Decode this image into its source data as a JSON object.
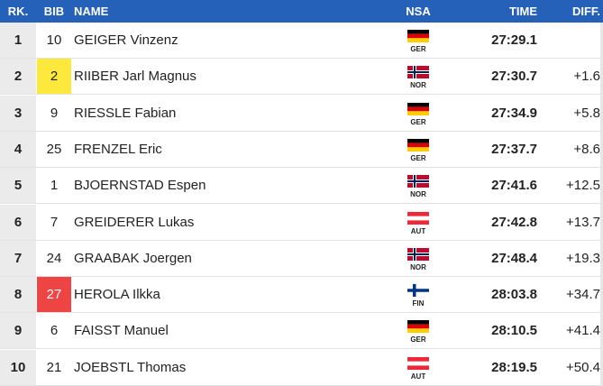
{
  "headers": {
    "rank": "RK.",
    "bib": "BIB",
    "name": "NAME",
    "nsa": "NSA",
    "time": "TIME",
    "diff": "DIFF."
  },
  "rows": [
    {
      "rank": "1",
      "bib": "10",
      "bib_color": "",
      "name": "GEIGER Vinzenz",
      "nsa": "GER",
      "flag": "germany-flag-icon",
      "time": "27:29.1",
      "diff": ""
    },
    {
      "rank": "2",
      "bib": "2",
      "bib_color": "yellow",
      "name": "RIIBER Jarl Magnus",
      "nsa": "NOR",
      "flag": "norway-flag-icon",
      "time": "27:30.7",
      "diff": "+1.6"
    },
    {
      "rank": "3",
      "bib": "9",
      "bib_color": "",
      "name": "RIESSLE Fabian",
      "nsa": "GER",
      "flag": "germany-flag-icon",
      "time": "27:34.9",
      "diff": "+5.8"
    },
    {
      "rank": "4",
      "bib": "25",
      "bib_color": "",
      "name": "FRENZEL Eric",
      "nsa": "GER",
      "flag": "germany-flag-icon",
      "time": "27:37.7",
      "diff": "+8.6"
    },
    {
      "rank": "5",
      "bib": "1",
      "bib_color": "",
      "name": "BJOERNSTAD Espen",
      "nsa": "NOR",
      "flag": "norway-flag-icon",
      "time": "27:41.6",
      "diff": "+12.5"
    },
    {
      "rank": "6",
      "bib": "7",
      "bib_color": "",
      "name": "GREIDERER Lukas",
      "nsa": "AUT",
      "flag": "austria-flag-icon",
      "time": "27:42.8",
      "diff": "+13.7"
    },
    {
      "rank": "7",
      "bib": "24",
      "bib_color": "",
      "name": "GRAABAK Joergen",
      "nsa": "NOR",
      "flag": "norway-flag-icon",
      "time": "27:48.4",
      "diff": "+19.3"
    },
    {
      "rank": "8",
      "bib": "27",
      "bib_color": "red",
      "name": "HEROLA Ilkka",
      "nsa": "FIN",
      "flag": "finland-flag-icon",
      "time": "28:03.8",
      "diff": "+34.7"
    },
    {
      "rank": "9",
      "bib": "6",
      "bib_color": "",
      "name": "FAISST Manuel",
      "nsa": "GER",
      "flag": "germany-flag-icon",
      "time": "28:10.5",
      "diff": "+41.4"
    },
    {
      "rank": "10",
      "bib": "21",
      "bib_color": "",
      "name": "JOEBSTL Thomas",
      "nsa": "AUT",
      "flag": "austria-flag-icon",
      "time": "28:19.5",
      "diff": "+50.4"
    }
  ],
  "colors": {
    "header": "#2561b8",
    "rank_cell": "#ebebeb",
    "bib_yellow": "#fde93b",
    "bib_red": "#ef4444"
  }
}
